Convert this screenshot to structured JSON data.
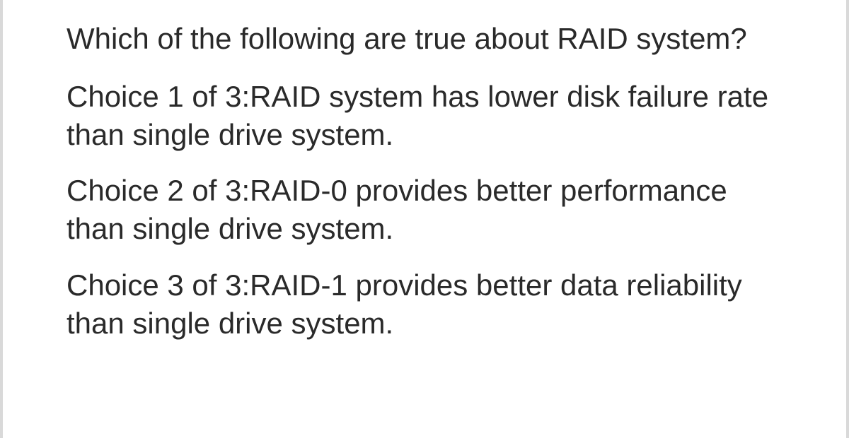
{
  "question": {
    "prompt": "Which of the following are true about RAID system?",
    "choices": [
      "Choice 1 of 3:RAID system has lower disk failure rate than single drive system.",
      "Choice 2 of 3:RAID-0 provides better performance than single drive system.",
      "Choice 3 of 3:RAID-1 provides better data reliability than single drive system."
    ]
  },
  "style": {
    "font_size_pt": 32,
    "text_color": "#2a2a2a",
    "background_color": "#ffffff",
    "side_border_color": "#d9d9d9",
    "font_family": "Segoe UI / Helvetica Neue / Arial",
    "line_height": 1.28
  }
}
